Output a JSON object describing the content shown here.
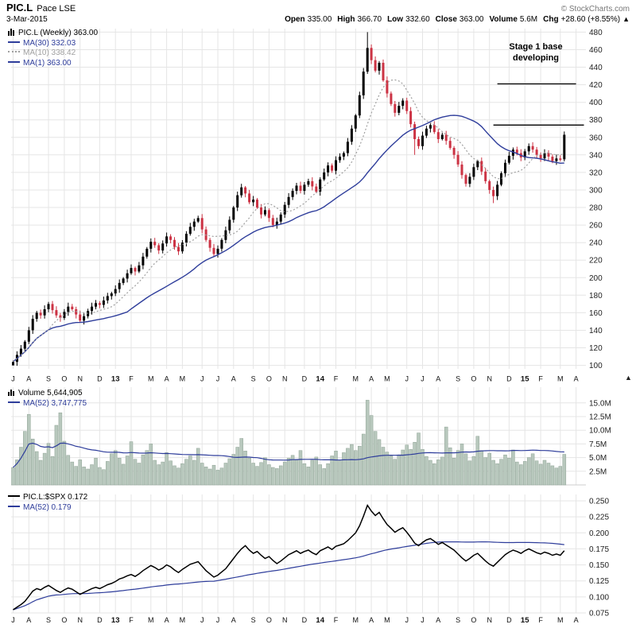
{
  "header": {
    "symbol": "PIC.L",
    "name": "Pace LSE",
    "copyright": "© StockCharts.com",
    "date": "3-Mar-2015",
    "quote": {
      "open_label": "Open",
      "open": "335.00",
      "high_label": "High",
      "high": "366.70",
      "low_label": "Low",
      "low": "332.60",
      "close_label": "Close",
      "close": "363.00",
      "volume_label": "Volume",
      "volume": "5.6M",
      "chg_label": "Chg",
      "chg": "+28.60 (+8.55%)",
      "chg_arrow": "▲"
    }
  },
  "legends": {
    "price": {
      "series": "PIC.L (Weekly) 363.00",
      "ma30": "MA(30) 332.03",
      "ma10": "MA(10) 338.42",
      "ma1": "MA(1) 363.00"
    },
    "volume": {
      "series": "Volume 5,644,905",
      "ma52": "MA(52) 3,747,775"
    },
    "ratio": {
      "series": "PIC.L:$SPX 0.172",
      "ma52": "MA(52) 0.179"
    }
  },
  "annotation": {
    "line1": "Stage 1 base",
    "line2": "developing"
  },
  "icons": {
    "axis_arrow": "▲"
  },
  "colors": {
    "ma_blue": "#2e3d9b",
    "ma10_gray": "#a0a0a0",
    "bar_up": "#000000",
    "bar_down": "#cc3344",
    "volume_fill": "#b8c8bd",
    "volume_stroke": "#8fa496",
    "grid": "#e5e5e5",
    "axis_text": "#222222",
    "ratio_line": "#000000"
  },
  "chart_data": {
    "type": "multi-panel-financial",
    "weeks_total": 146,
    "x_ticks": [
      {
        "label": "J",
        "week": 0
      },
      {
        "label": "A",
        "week": 4
      },
      {
        "label": "S",
        "week": 9
      },
      {
        "label": "O",
        "week": 13
      },
      {
        "label": "N",
        "week": 17
      },
      {
        "label": "D",
        "week": 22
      },
      {
        "label": "13",
        "week": 26,
        "bold": true
      },
      {
        "label": "F",
        "week": 30
      },
      {
        "label": "M",
        "week": 35
      },
      {
        "label": "A",
        "week": 39
      },
      {
        "label": "M",
        "week": 43
      },
      {
        "label": "J",
        "week": 48
      },
      {
        "label": "J",
        "week": 52
      },
      {
        "label": "A",
        "week": 56
      },
      {
        "label": "S",
        "week": 61
      },
      {
        "label": "O",
        "week": 65
      },
      {
        "label": "N",
        "week": 69
      },
      {
        "label": "D",
        "week": 74
      },
      {
        "label": "14",
        "week": 78,
        "bold": true
      },
      {
        "label": "F",
        "week": 82
      },
      {
        "label": "M",
        "week": 87
      },
      {
        "label": "A",
        "week": 91
      },
      {
        "label": "M",
        "week": 95
      },
      {
        "label": "J",
        "week": 100
      },
      {
        "label": "J",
        "week": 104
      },
      {
        "label": "A",
        "week": 108
      },
      {
        "label": "S",
        "week": 113
      },
      {
        "label": "O",
        "week": 117
      },
      {
        "label": "N",
        "week": 121
      },
      {
        "label": "D",
        "week": 126
      },
      {
        "label": "15",
        "week": 130,
        "bold": true
      },
      {
        "label": "F",
        "week": 134
      },
      {
        "label": "M",
        "week": 139
      },
      {
        "label": "A",
        "week": 143
      }
    ],
    "panels": [
      {
        "type": "bar",
        "style": "weekly-candlestick",
        "title": "PIC.L (Weekly)",
        "ytick_min": 100,
        "ytick_max": 480,
        "ytick_step": 20,
        "ylim": [
          96,
          484
        ],
        "closes": [
          104,
          112,
          119,
          127,
          140,
          153,
          160,
          157,
          164,
          170,
          163,
          157,
          154,
          161,
          167,
          164,
          158,
          151,
          156,
          162,
          167,
          171,
          169,
          174,
          179,
          182,
          187,
          194,
          199,
          205,
          211,
          207,
          214,
          224,
          233,
          241,
          237,
          231,
          239,
          247,
          243,
          235,
          230,
          240,
          250,
          258,
          264,
          268,
          255,
          243,
          234,
          227,
          233,
          243,
          254,
          266,
          280,
          294,
          303,
          296,
          286,
          289,
          280,
          272,
          277,
          268,
          260,
          264,
          272,
          283,
          292,
          299,
          305,
          299,
          306,
          310,
          304,
          298,
          312,
          320,
          328,
          322,
          334,
          338,
          342,
          355,
          370,
          385,
          408,
          435,
          462,
          448,
          436,
          445,
          425,
          410,
          398,
          388,
          396,
          402,
          390,
          375,
          358,
          350,
          362,
          370,
          374,
          366,
          358,
          363,
          356,
          348,
          340,
          329,
          317,
          307,
          315,
          326,
          333,
          321,
          310,
          300,
          293,
          306,
          319,
          331,
          339,
          346,
          342,
          337,
          344,
          350,
          346,
          340,
          336,
          342,
          338,
          333,
          336,
          334.4,
          363
        ],
        "highs_override": {
          "90": 480
        },
        "lows_override": {
          "0": 100,
          "102": 340,
          "122": 285
        },
        "last_bar": {
          "open": 335.0,
          "high": 366.7,
          "low": 332.6,
          "close": 363.0
        },
        "ma": [
          {
            "name": "MA(30)",
            "window": 30,
            "value": 332.03,
            "style": "solid-blue"
          },
          {
            "name": "MA(10)",
            "window": 10,
            "value": 338.42,
            "style": "dotted-gray"
          },
          {
            "name": "MA(1)",
            "window": 1,
            "value": 363.0,
            "style": "solid-blue"
          }
        ],
        "annotation_lines": [
          {
            "level": 421,
            "from": 123,
            "to": 143
          },
          {
            "level": 374,
            "from": 122,
            "to": 145
          }
        ]
      },
      {
        "type": "bar",
        "title": "Volume",
        "unit": "millions",
        "ytick_min": 2.5,
        "ytick_max": 15.0,
        "ytick_step": 2.5,
        "ylim": [
          0,
          16.5
        ],
        "values": [
          3.2,
          4.6,
          6.9,
          9.8,
          12.9,
          8.4,
          6.1,
          4.5,
          5.8,
          7.6,
          5.2,
          10.9,
          13.2,
          8.0,
          5.4,
          4.2,
          3.4,
          4.6,
          3.3,
          2.9,
          3.7,
          4.9,
          3.2,
          2.8,
          4.3,
          5.7,
          6.3,
          4.9,
          3.8,
          5.3,
          7.9,
          4.7,
          4.0,
          5.5,
          6.3,
          7.5,
          4.5,
          3.7,
          4.2,
          5.9,
          4.4,
          3.5,
          3.1,
          3.9,
          4.7,
          5.3,
          4.5,
          6.7,
          4.0,
          3.3,
          2.9,
          3.6,
          2.7,
          3.1,
          4.0,
          4.8,
          5.6,
          6.9,
          8.5,
          6.2,
          4.9,
          4.0,
          3.4,
          4.1,
          5.0,
          3.7,
          3.2,
          3.0,
          3.5,
          4.2,
          4.9,
          5.4,
          4.6,
          6.3,
          3.9,
          3.3,
          4.5,
          5.1,
          3.7,
          3.0,
          3.9,
          5.3,
          6.2,
          4.4,
          5.9,
          6.7,
          7.4,
          6.3,
          7.1,
          9.3,
          15.5,
          12.7,
          9.8,
          8.3,
          6.9,
          6.0,
          5.3,
          4.7,
          5.5,
          6.4,
          7.3,
          6.5,
          7.8,
          9.5,
          6.5,
          5.2,
          4.5,
          3.9,
          4.6,
          5.1,
          10.6,
          6.8,
          4.9,
          6.3,
          7.5,
          5.7,
          4.4,
          5.2,
          8.9,
          6.3,
          5.0,
          5.8,
          4.5,
          3.9,
          4.7,
          5.5,
          4.9,
          6.4,
          4.2,
          3.7,
          4.3,
          5.0,
          5.7,
          4.4,
          3.8,
          4.5,
          4.0,
          3.5,
          3.1,
          3.4,
          5.6
        ],
        "ma": [
          {
            "name": "MA(52)",
            "window": 52,
            "value": 3747775
          }
        ]
      },
      {
        "type": "line",
        "title": "PIC.L:$SPX",
        "ytick_min": 0.075,
        "ytick_max": 0.25,
        "ytick_step": 0.025,
        "ylim": [
          0.068,
          0.252
        ],
        "values": [
          0.08,
          0.084,
          0.088,
          0.093,
          0.101,
          0.109,
          0.113,
          0.111,
          0.115,
          0.118,
          0.114,
          0.11,
          0.107,
          0.111,
          0.114,
          0.112,
          0.108,
          0.104,
          0.107,
          0.11,
          0.113,
          0.115,
          0.113,
          0.116,
          0.119,
          0.121,
          0.124,
          0.128,
          0.13,
          0.133,
          0.135,
          0.132,
          0.136,
          0.141,
          0.145,
          0.149,
          0.146,
          0.142,
          0.145,
          0.15,
          0.147,
          0.142,
          0.138,
          0.143,
          0.147,
          0.151,
          0.153,
          0.155,
          0.148,
          0.141,
          0.136,
          0.131,
          0.134,
          0.139,
          0.144,
          0.152,
          0.16,
          0.168,
          0.175,
          0.18,
          0.173,
          0.168,
          0.171,
          0.165,
          0.16,
          0.163,
          0.157,
          0.152,
          0.156,
          0.161,
          0.166,
          0.169,
          0.172,
          0.168,
          0.171,
          0.173,
          0.169,
          0.166,
          0.172,
          0.175,
          0.178,
          0.174,
          0.179,
          0.181,
          0.183,
          0.188,
          0.194,
          0.2,
          0.211,
          0.226,
          0.243,
          0.234,
          0.227,
          0.232,
          0.222,
          0.213,
          0.207,
          0.201,
          0.205,
          0.208,
          0.201,
          0.193,
          0.184,
          0.18,
          0.185,
          0.189,
          0.191,
          0.187,
          0.182,
          0.185,
          0.181,
          0.177,
          0.173,
          0.167,
          0.161,
          0.156,
          0.16,
          0.165,
          0.168,
          0.162,
          0.156,
          0.151,
          0.148,
          0.154,
          0.16,
          0.166,
          0.17,
          0.173,
          0.171,
          0.168,
          0.172,
          0.175,
          0.172,
          0.169,
          0.167,
          0.17,
          0.168,
          0.165,
          0.167,
          0.165,
          0.172
        ],
        "ma": [
          {
            "name": "MA(52)",
            "window": 52,
            "value": 0.179
          }
        ]
      }
    ]
  }
}
